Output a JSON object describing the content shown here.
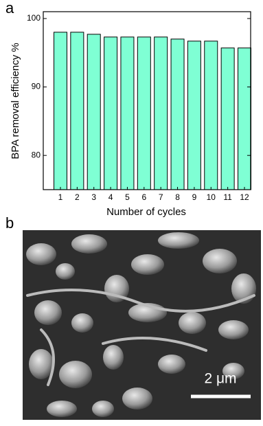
{
  "chart_data": {
    "type": "bar",
    "categories": [
      "1",
      "2",
      "3",
      "4",
      "5",
      "6",
      "7",
      "8",
      "9",
      "10",
      "11",
      "12"
    ],
    "values": [
      98.0,
      98.0,
      97.7,
      97.3,
      97.3,
      97.3,
      97.3,
      97.0,
      96.7,
      96.7,
      95.7,
      95.7
    ],
    "color": "#7fffd4",
    "ylabel": "BPA removal efficiency %",
    "xlabel": "Number of cycles",
    "ylim": [
      75,
      101
    ],
    "yticks": [
      80,
      90,
      100
    ]
  },
  "panel_labels": [
    "a",
    "b"
  ],
  "scale_bar": "2 μm"
}
